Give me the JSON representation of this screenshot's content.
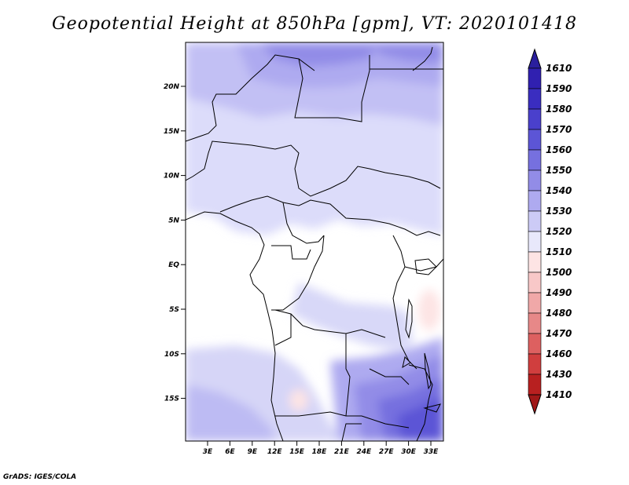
{
  "title": "Geopotential Height at 850hPa [gpm], VT: 2020101418",
  "credit": "GrADS: IGES/COLA",
  "map": {
    "lat_ticks": [
      "20N",
      "15N",
      "10N",
      "5N",
      "EQ",
      "5S",
      "10S",
      "15S"
    ],
    "lon_ticks": [
      "3E",
      "6E",
      "9E",
      "12E",
      "15E",
      "18E",
      "21E",
      "24E",
      "27E",
      "30E",
      "33E"
    ],
    "lat_range": [
      -20,
      25
    ],
    "lon_range": [
      0,
      35
    ]
  },
  "colorbar": {
    "levels": [
      "1610",
      "1590",
      "1580",
      "1570",
      "1560",
      "1550",
      "1540",
      "1530",
      "1520",
      "1510",
      "1500",
      "1490",
      "1480",
      "1470",
      "1460",
      "1430",
      "1410"
    ],
    "colors": [
      "#2a1f9e",
      "#3020b0",
      "#3a2dc0",
      "#4a40cc",
      "#5c55d6",
      "#7670df",
      "#928ce7",
      "#aeaaf0",
      "#cccbf6",
      "#e8e8fb",
      "#fde4e4",
      "#f8c8c8",
      "#f0a8a8",
      "#e78888",
      "#dd6060",
      "#d03e3e",
      "#b82020",
      "#a01818"
    ]
  }
}
